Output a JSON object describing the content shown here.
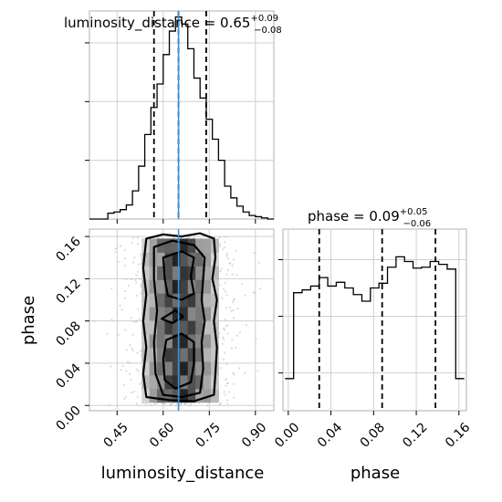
{
  "chart_data": [
    {
      "type": "histogram",
      "panel": "luminosity_distance-marginal",
      "title": {
        "prefix": "luminosity_distance = 0.65",
        "sup": "+0.09",
        "sub": "−0.08"
      },
      "xlim": [
        0.36,
        0.96
      ],
      "bin_edges": [
        0.36,
        0.38,
        0.4,
        0.42,
        0.44,
        0.46,
        0.48,
        0.5,
        0.52,
        0.54,
        0.56,
        0.58,
        0.6,
        0.62,
        0.64,
        0.66,
        0.68,
        0.7,
        0.72,
        0.74,
        0.76,
        0.78,
        0.8,
        0.82,
        0.84,
        0.86,
        0.88,
        0.9,
        0.92,
        0.94,
        0.96
      ],
      "values": [
        0,
        0,
        0,
        5,
        6,
        8,
        12,
        24,
        45,
        72,
        95,
        115,
        140,
        160,
        172,
        166,
        145,
        120,
        103,
        85,
        68,
        50,
        28,
        18,
        11,
        6,
        3,
        2,
        1,
        0
      ],
      "quantiles": [
        0.57,
        0.65,
        0.74
      ],
      "truth": 0.65
    },
    {
      "type": "heatmap",
      "panel": "2d-density",
      "xlabel": "luminosity_distance",
      "ylabel": "phase",
      "xlim": [
        0.36,
        0.96
      ],
      "ylim": [
        -0.005,
        0.167
      ],
      "xticks": [
        "0.45",
        "0.60",
        "0.75",
        "0.90"
      ],
      "yticks": [
        "0.00",
        "0.04",
        "0.08",
        "0.12",
        "0.16"
      ],
      "density_x_range": [
        0.5,
        0.83
      ],
      "density_y_range": [
        0.0,
        0.16
      ],
      "truth": 0.65
    },
    {
      "type": "histogram",
      "panel": "phase-marginal",
      "title": {
        "prefix": "phase = 0.09",
        "sup": "+0.05",
        "sub": "−0.06"
      },
      "xlabel": "phase",
      "xlim": [
        -0.005,
        0.167
      ],
      "xticks": [
        "0.00",
        "0.04",
        "0.08",
        "0.12",
        "0.16"
      ],
      "bin_edges": [
        -0.003,
        0.005,
        0.013,
        0.021,
        0.029,
        0.037,
        0.045,
        0.053,
        0.061,
        0.069,
        0.077,
        0.085,
        0.093,
        0.101,
        0.109,
        0.117,
        0.125,
        0.133,
        0.141,
        0.149,
        0.157,
        0.165
      ],
      "values": [
        34,
        125,
        128,
        132,
        141,
        132,
        136,
        130,
        123,
        116,
        130,
        135,
        152,
        163,
        158,
        151,
        152,
        158,
        155,
        150,
        34
      ],
      "quantiles": [
        0.029,
        0.088,
        0.138
      ]
    }
  ]
}
